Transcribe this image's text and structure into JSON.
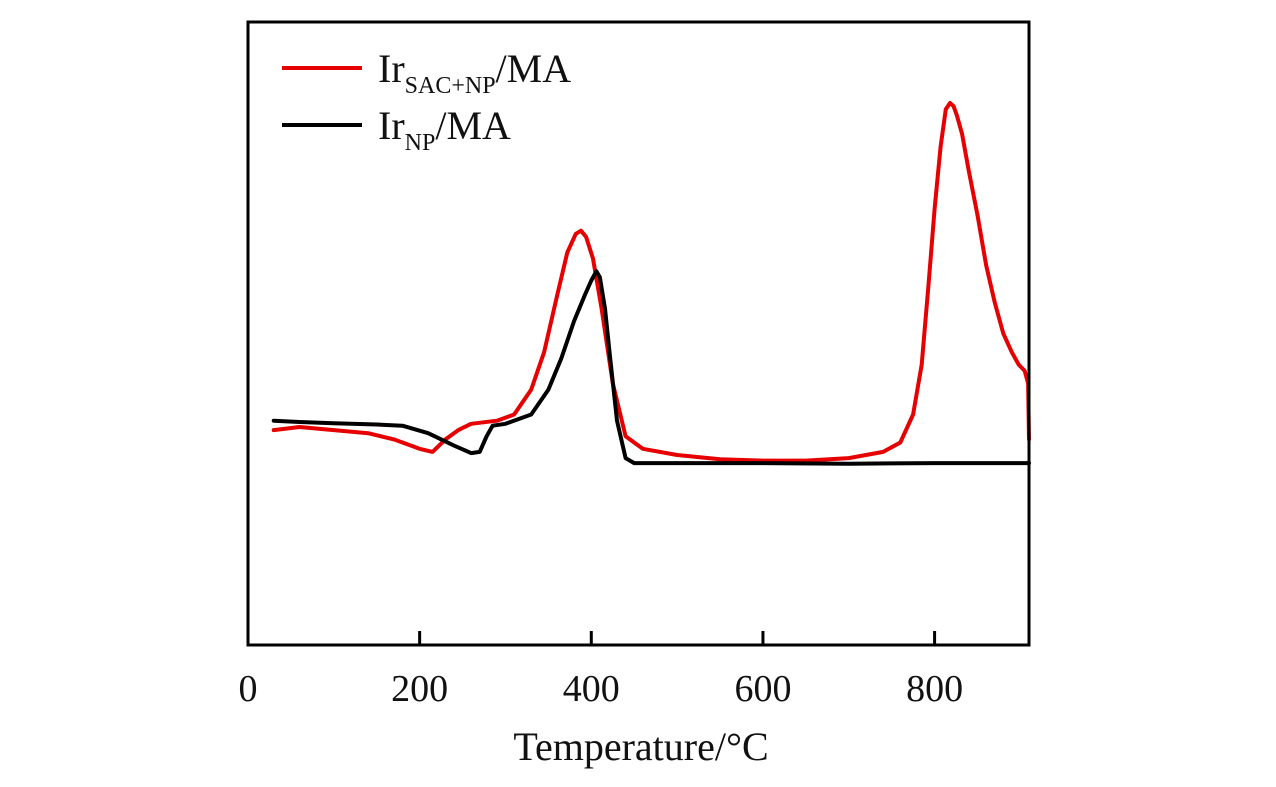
{
  "chart_data": {
    "type": "line",
    "xlabel": "Temperature/°C",
    "ylabel": "",
    "xlim": [
      0,
      910
    ],
    "ylim": [
      0,
      1
    ],
    "x_ticks": [
      0,
      200,
      400,
      600,
      800
    ],
    "y_ticks": [],
    "grid": false,
    "legend_position": "top-left",
    "series": [
      {
        "name": "Ir_SAC+NP/MA",
        "legend": {
          "main": "Ir",
          "sub": "SAC+NP",
          "suffix": "/MA"
        },
        "color": "#e60000",
        "x": [
          30,
          60,
          100,
          140,
          170,
          200,
          215,
          230,
          245,
          260,
          290,
          310,
          330,
          345,
          360,
          372,
          382,
          388,
          394,
          402,
          412,
          425,
          440,
          460,
          500,
          550,
          600,
          650,
          700,
          740,
          760,
          775,
          785,
          793,
          800,
          807,
          813,
          818,
          822,
          826,
          832,
          840,
          850,
          860,
          870,
          880,
          890,
          898,
          905,
          909,
          910
        ],
        "y": [
          0.345,
          0.35,
          0.345,
          0.34,
          0.33,
          0.315,
          0.31,
          0.33,
          0.345,
          0.355,
          0.36,
          0.37,
          0.41,
          0.47,
          0.56,
          0.63,
          0.66,
          0.665,
          0.655,
          0.62,
          0.54,
          0.42,
          0.335,
          0.315,
          0.305,
          0.298,
          0.296,
          0.296,
          0.3,
          0.31,
          0.325,
          0.37,
          0.45,
          0.58,
          0.7,
          0.8,
          0.86,
          0.87,
          0.865,
          0.85,
          0.82,
          0.76,
          0.69,
          0.61,
          0.55,
          0.5,
          0.47,
          0.45,
          0.44,
          0.42,
          0.33
        ]
      },
      {
        "name": "Ir_NP/MA",
        "legend": {
          "main": "Ir",
          "sub": "NP",
          "suffix": "/MA"
        },
        "color": "#000000",
        "x": [
          30,
          60,
          100,
          150,
          180,
          210,
          240,
          260,
          270,
          278,
          285,
          300,
          330,
          350,
          365,
          380,
          392,
          400,
          406,
          410,
          416,
          422,
          430,
          440,
          450,
          500,
          600,
          700,
          800,
          910
        ],
        "y": [
          0.36,
          0.358,
          0.356,
          0.354,
          0.352,
          0.34,
          0.32,
          0.308,
          0.31,
          0.335,
          0.352,
          0.355,
          0.37,
          0.41,
          0.46,
          0.52,
          0.56,
          0.585,
          0.6,
          0.59,
          0.54,
          0.46,
          0.36,
          0.3,
          0.292,
          0.292,
          0.292,
          0.291,
          0.292,
          0.292
        ]
      }
    ]
  }
}
